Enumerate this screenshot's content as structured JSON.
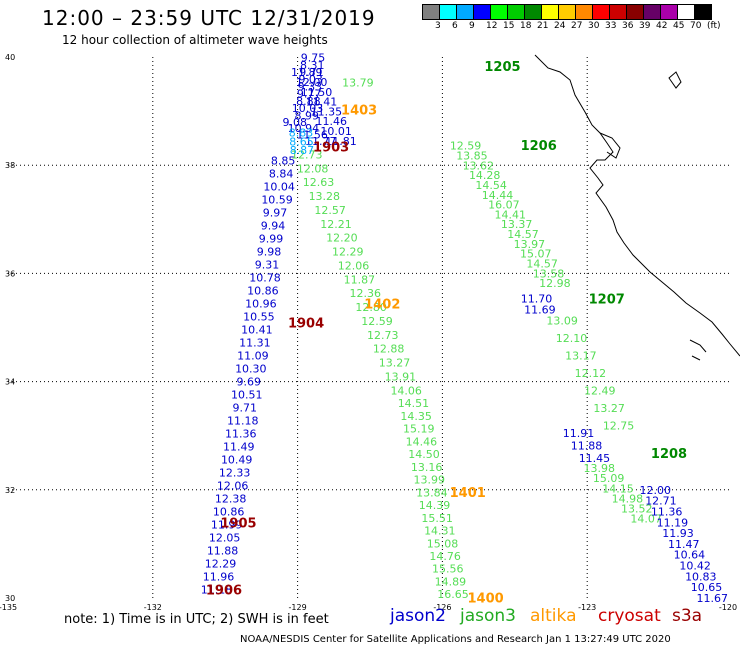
{
  "title": "12:00 – 23:59 UTC 12/31/2019",
  "subtitle": "12 hour collection of altimeter wave heights",
  "legend": {
    "colors": [
      "#808080",
      "#00ffff",
      "#00aaff",
      "#0000ff",
      "#00ff00",
      "#00cc00",
      "#008800",
      "#ffff00",
      "#ffcc00",
      "#ff8800",
      "#ff0000",
      "#cc0000",
      "#880000",
      "#660066",
      "#aa00aa",
      "#ffffff",
      "#000000"
    ],
    "labels": [
      "3",
      "6",
      "9",
      "12",
      "15",
      "18",
      "21",
      "24",
      "27",
      "30",
      "33",
      "36",
      "39",
      "42",
      "45",
      "70",
      "(ft)"
    ]
  },
  "axes": {
    "lon_ticks": [
      "-135",
      "-132",
      "-129",
      "-126",
      "-123",
      "-120"
    ],
    "lat_ticks": [
      "40",
      "38",
      "36",
      "34",
      "32",
      "30"
    ]
  },
  "satellites": [
    {
      "name": "jason2",
      "color": "#0000cc"
    },
    {
      "name": "jason3",
      "color": "#22aa22"
    },
    {
      "name": "altika",
      "color": "#ff9900"
    },
    {
      "name": "cryosat",
      "color": "#cc0000"
    },
    {
      "name": "s3a",
      "color": "#990000"
    }
  ],
  "note": "note:  1) Time is in UTC; 2) SWH is in feet",
  "credit": "NOAA/NESDIS Center for Satellite Applications and Research     Jan  1 13:27:49 UTC 2020",
  "time_labels": [
    {
      "text": "1205",
      "lon": -125.13,
      "lat": 39.83,
      "color": "#008800"
    },
    {
      "text": "1206",
      "lon": -124.38,
      "lat": 38.37,
      "color": "#008800"
    },
    {
      "text": "1207",
      "lon": -122.97,
      "lat": 35.54,
      "color": "#008800"
    },
    {
      "text": "1208",
      "lon": -121.68,
      "lat": 32.68,
      "color": "#008800"
    },
    {
      "text": "1403",
      "lon": -128.1,
      "lat": 39.03,
      "color": "#ff9900"
    },
    {
      "text": "1402",
      "lon": -127.62,
      "lat": 35.44,
      "color": "#ff9900"
    },
    {
      "text": "1401",
      "lon": -125.85,
      "lat": 31.96,
      "color": "#ff9900"
    },
    {
      "text": "1400",
      "lon": -125.48,
      "lat": 30.01,
      "color": "#ff9900"
    },
    {
      "text": "1903",
      "lon": -128.68,
      "lat": 38.35,
      "color": "#990000"
    },
    {
      "text": "1904",
      "lon": -129.2,
      "lat": 35.09,
      "color": "#990000"
    },
    {
      "text": "1905",
      "lon": -130.6,
      "lat": 31.4,
      "color": "#990000"
    },
    {
      "text": "1906",
      "lon": -130.9,
      "lat": 30.16,
      "color": "#990000"
    }
  ],
  "tracks": [
    {
      "color": "#0000cc",
      "x0": -128.81,
      "y0": 39.72,
      "x1": -128.1,
      "y1": 38.45,
      "values": [
        "11.89",
        "12.00",
        "11.50",
        "11.41",
        "11.35",
        "11.46",
        "10.01",
        "11.81"
      ]
    },
    {
      "color": "#55dd55",
      "x0": -127.75,
      "y0": 39.53,
      "x1": -127.42,
      "y1": 38.37,
      "values": [
        "13.79"
      ]
    },
    {
      "color": "#55dd55",
      "x0": -125.52,
      "y0": 38.36,
      "x1": -123.67,
      "y1": 35.82,
      "values": [
        "12.59",
        "13.85",
        "13.62",
        "14.28",
        "14.54",
        "14.44",
        "16.07",
        "14.41",
        "13.37",
        "14.57",
        "13.97",
        "15.07",
        "14.57",
        "13.58",
        "12.98"
      ]
    },
    {
      "color": "#0000cc",
      "x0": -124.05,
      "y0": 35.54,
      "x1": -123.98,
      "y1": 35.33,
      "values": [
        "11.70",
        "11.69"
      ]
    },
    {
      "color": "#55dd55",
      "x0": -123.52,
      "y0": 35.13,
      "x1": -122.35,
      "y1": 33.19,
      "values": [
        "13.09",
        "12.10",
        "13.17",
        "12.12",
        "12.49",
        "13.27",
        "12.75"
      ]
    },
    {
      "color": "#0000cc",
      "x0": -123.18,
      "y0": 33.05,
      "x1": -122.85,
      "y1": 32.59,
      "values": [
        "11.91",
        "11.88",
        "11.45"
      ]
    },
    {
      "color": "#55dd55",
      "x0": -122.75,
      "y0": 32.4,
      "x1": -121.78,
      "y1": 31.47,
      "values": [
        "13.98",
        "15.09",
        "14.15",
        "14.98",
        "13.52",
        "14.07"
      ]
    },
    {
      "color": "#0000cc",
      "x0": -121.59,
      "y0": 32.0,
      "x1": -120.41,
      "y1": 30.0,
      "values": [
        "12.00",
        "12.71",
        "11.36",
        "11.19",
        "11.93",
        "11.47",
        "10.64",
        "10.42",
        "10.83",
        "10.65",
        "11.67"
      ]
    },
    {
      "color": "#55dd55",
      "x0": -128.81,
      "y0": 38.2,
      "x1": -126.75,
      "y1": 33.84,
      "values": [
        "12.73",
        "12.08",
        "12.63",
        "13.28",
        "12.57",
        "12.21",
        "12.20",
        "12.29",
        "12.06",
        "11.87",
        "12.36",
        "12.80",
        "12.59",
        "12.73",
        "12.88",
        "13.27",
        "13.91",
        "14.06"
      ]
    },
    {
      "color": "#55dd55",
      "x0": -126.6,
      "y0": 33.6,
      "x1": -125.78,
      "y1": 30.07,
      "values": [
        "14.51",
        "14.35",
        "15.19",
        "14.46",
        "14.50",
        "13.16",
        "13.99",
        "13.84",
        "14.39",
        "15.51",
        "14.31",
        "15.08",
        "14.76",
        "15.56",
        "14.89",
        "16.65"
      ]
    },
    {
      "color": "#0000cc",
      "x0": -128.68,
      "y0": 39.99,
      "x1": -128.81,
      "y1": 38.92,
      "values": [
        "9.75",
        "8.31",
        "9.71",
        "9.03",
        "9.33",
        "9.77",
        "8.88",
        "10.03",
        "8.99"
      ]
    },
    {
      "color": "#0000cc",
      "x0": -129.06,
      "y0": 38.8,
      "x1": -128.52,
      "y1": 38.45,
      "values": [
        "9.08",
        "10.94",
        "11.56",
        "11.77"
      ]
    },
    {
      "color": "#00aaff",
      "x0": -128.93,
      "y0": 38.6,
      "x1": -128.91,
      "y1": 38.28,
      "values": [
        "8.83",
        "8.65",
        "8.87"
      ]
    },
    {
      "color": "#0000cc",
      "x0": -129.3,
      "y0": 38.09,
      "x1": -130.68,
      "y1": 30.16,
      "values": [
        "8.85",
        "8.84",
        "10.04",
        "10.59",
        "9.97",
        "9.94",
        "9.99",
        "9.98",
        "9.31",
        "10.78",
        "10.86",
        "10.96",
        "10.55",
        "10.41",
        "11.31",
        "11.09",
        "10.30",
        "9.69",
        "10.51",
        "9.71",
        "11.18",
        "11.36",
        "11.49",
        "10.49",
        "12.33",
        "12.06",
        "12.38",
        "10.86",
        "11.99",
        "12.05",
        "11.88",
        "12.29",
        "11.96",
        "11.18"
      ]
    }
  ]
}
